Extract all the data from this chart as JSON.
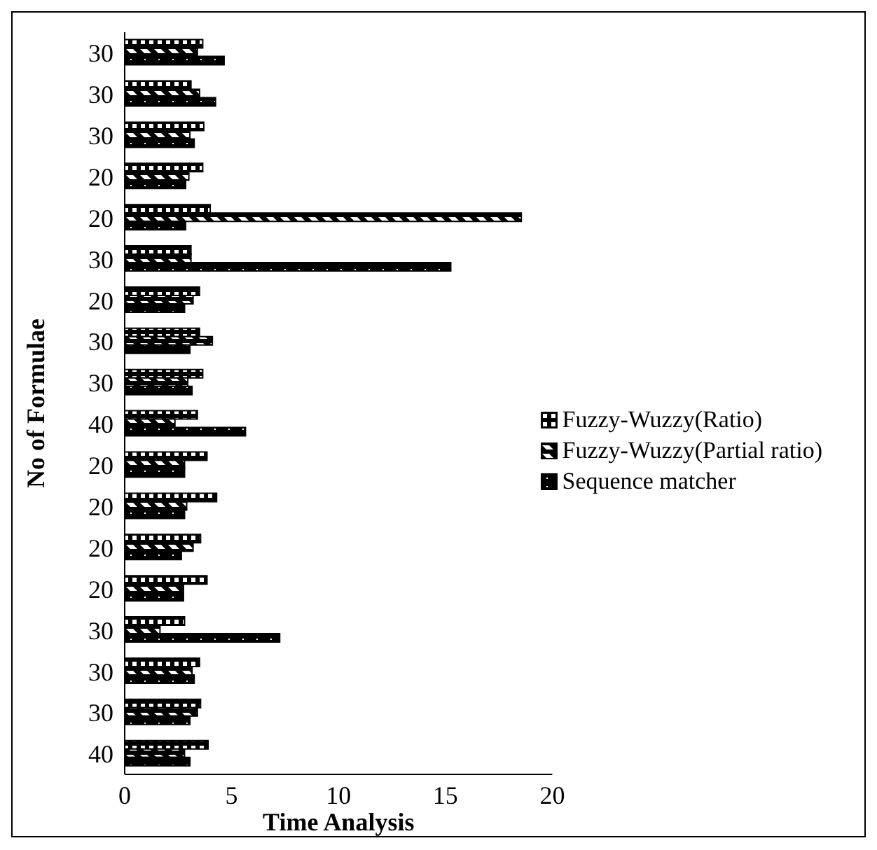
{
  "chart_data": {
    "type": "bar",
    "orientation": "horizontal",
    "xlabel": "Time Analysis",
    "ylabel": "No of Formulae",
    "categories": [
      "30",
      "30",
      "30",
      "20",
      "20",
      "30",
      "20",
      "30",
      "30",
      "40",
      "20",
      "20",
      "20",
      "20",
      "30",
      "30",
      "30",
      "40"
    ],
    "series": [
      {
        "name": "Fuzzy-Wuzzy(Ratio)",
        "color": "#000000",
        "values": [
          3.65,
          3.1,
          3.7,
          3.65,
          4.0,
          3.1,
          3.5,
          3.5,
          3.65,
          3.4,
          3.85,
          4.3,
          3.55,
          3.85,
          2.8,
          3.5,
          3.55,
          3.9
        ]
      },
      {
        "name": "Fuzzy-Wuzzy(Partial ratio)",
        "color": "#000000",
        "values": [
          3.4,
          3.5,
          3.05,
          3.0,
          18.55,
          3.1,
          3.2,
          4.1,
          2.95,
          2.35,
          2.8,
          2.9,
          3.2,
          2.75,
          1.65,
          3.15,
          3.4,
          2.8
        ]
      },
      {
        "name": "Sequence matcher",
        "color": "#000000",
        "values": [
          4.65,
          4.25,
          3.25,
          2.85,
          2.85,
          15.25,
          2.8,
          3.05,
          3.15,
          5.65,
          2.8,
          2.8,
          2.65,
          2.75,
          7.25,
          3.25,
          3.05,
          3.05
        ]
      }
    ],
    "xlim": [
      0,
      20
    ],
    "xticks": [
      0,
      5,
      10,
      15,
      20
    ],
    "grid": false,
    "legend": "right"
  }
}
